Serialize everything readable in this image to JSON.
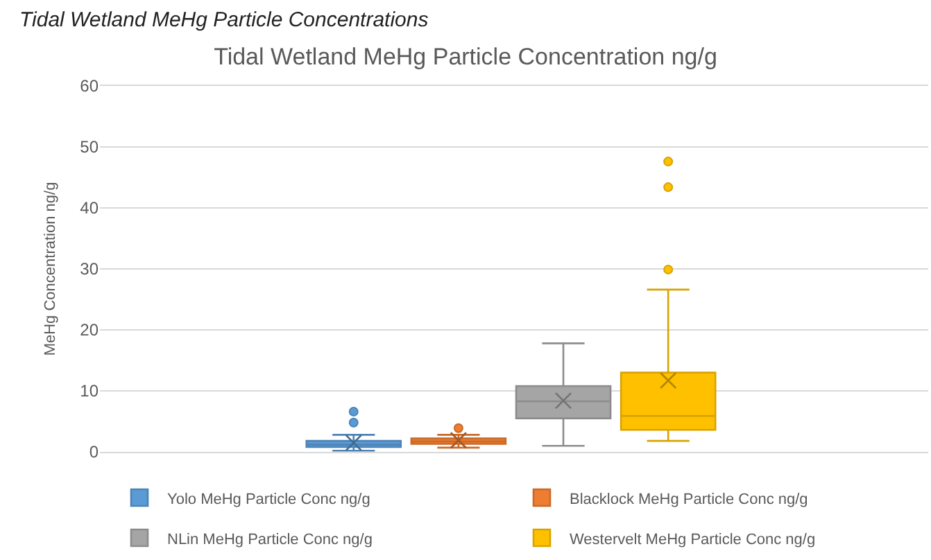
{
  "chart_data": {
    "type": "box",
    "title": "Tidal Wetland MeHg Particle Concentration ng/g",
    "annotations": [
      "Tidal Wetland MeHg Particle Concentrations"
    ],
    "ylabel": "MeHg Concentration ng/g",
    "categories": [
      null
    ],
    "ylim": [
      0,
      60
    ],
    "yticks": [
      0,
      10,
      20,
      30,
      40,
      50,
      60
    ],
    "grid": "y",
    "legend": "bottom",
    "series": [
      {
        "name": "Yolo MeHg Particle Conc ng/g",
        "color": "#5b9bd5",
        "boxes": [
          {
            "low": 0.2,
            "q1": 0.8,
            "median": 1.2,
            "q3": 1.8,
            "high": 2.8,
            "mean": 1.5,
            "outliers": [
              4.8,
              6.6
            ]
          }
        ]
      },
      {
        "name": "Blacklock MeHg Particle Conc ng/g",
        "color": "#ed7d31",
        "boxes": [
          {
            "low": 0.7,
            "q1": 1.3,
            "median": 1.7,
            "q3": 2.2,
            "high": 2.8,
            "mean": 1.9,
            "outliers": [
              3.9
            ]
          }
        ]
      },
      {
        "name": "NLin MeHg Particle Conc ng/g",
        "color": "#a5a5a5",
        "boxes": [
          {
            "low": 1.0,
            "q1": 5.5,
            "median": 8.3,
            "q3": 10.8,
            "high": 17.8,
            "mean": 8.4
          }
        ]
      },
      {
        "name": "Westervelt MeHg Particle Conc ng/g",
        "color": "#ffc000",
        "boxes": [
          {
            "low": 1.8,
            "q1": 3.6,
            "median": 5.9,
            "q3": 13.0,
            "high": 26.6,
            "mean": 11.7,
            "outliers": [
              29.9,
              43.4,
              47.6
            ]
          }
        ]
      }
    ]
  }
}
